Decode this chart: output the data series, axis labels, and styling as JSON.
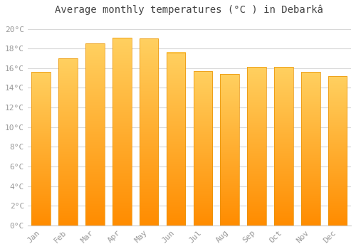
{
  "months": [
    "Jan",
    "Feb",
    "Mar",
    "Apr",
    "May",
    "Jun",
    "Jul",
    "Aug",
    "Sep",
    "Oct",
    "Nov",
    "Dec"
  ],
  "values": [
    15.6,
    17.0,
    18.5,
    19.1,
    19.0,
    17.6,
    15.7,
    15.4,
    16.1,
    16.1,
    15.6,
    15.2
  ],
  "bar_color_main": "#FFA500",
  "bar_color_top": "#F5C040",
  "bar_color_bottom": "#FF8C00",
  "title": "Average monthly temperatures (°C ) in Debarkâ",
  "ylabel_ticks": [
    "0°C",
    "2°C",
    "4°C",
    "6°C",
    "8°C",
    "10°C",
    "12°C",
    "14°C",
    "16°C",
    "18°C",
    "20°C"
  ],
  "ytick_values": [
    0,
    2,
    4,
    6,
    8,
    10,
    12,
    14,
    16,
    18,
    20
  ],
  "ylim": [
    0,
    21
  ],
  "background_color": "#ffffff",
  "grid_color": "#d8d8d8",
  "title_fontsize": 10,
  "tick_fontsize": 8,
  "font_color": "#999999"
}
